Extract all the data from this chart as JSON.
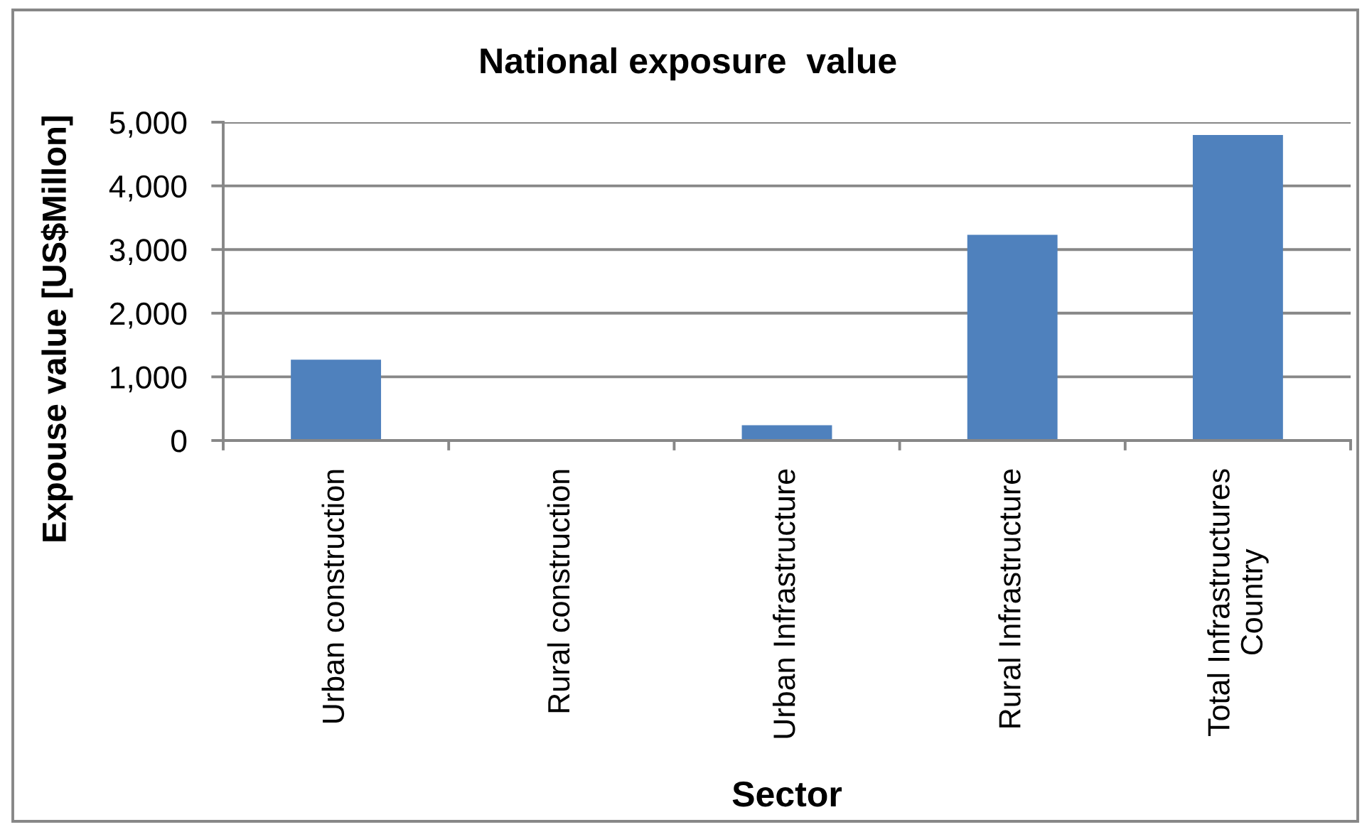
{
  "chart_data": {
    "type": "bar",
    "title": "National exposure  value",
    "xlabel": "Sector",
    "ylabel": "Expouse value [US$Millon]",
    "categories": [
      "Urban construction",
      "Rural construction",
      "Urban Infrastructure",
      "Rural Infrastructure",
      "Total Infrastructures\nCountry"
    ],
    "values": [
      1270,
      0,
      240,
      3230,
      4800
    ],
    "color": "#4f81bd",
    "ylim": [
      0,
      5000
    ],
    "yticks": [
      0,
      {
        "value": 1000,
        "label": "1,000"
      },
      {
        "value": 2000,
        "label": "2,000"
      },
      {
        "value": 3000,
        "label": "3,000"
      },
      {
        "value": 4000,
        "label": "4,000"
      },
      {
        "value": 5000,
        "label": "5,000"
      }
    ],
    "grid": "y"
  }
}
